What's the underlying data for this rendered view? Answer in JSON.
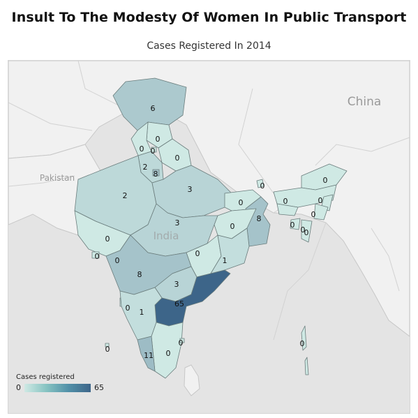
{
  "title": "Insult To The Modesty Of Women In Public Transport",
  "subtitle": "Cases Registered In 2014",
  "map": {
    "countries": [
      "China",
      "Pakistan",
      "India"
    ],
    "values": [
      {
        "id": "jk",
        "value": "6"
      },
      {
        "id": "hp",
        "value": "0"
      },
      {
        "id": "pb",
        "value": "0"
      },
      {
        "id": "ch",
        "value": "0"
      },
      {
        "id": "uk",
        "value": "0"
      },
      {
        "id": "hr",
        "value": "2"
      },
      {
        "id": "dl",
        "value": "8"
      },
      {
        "id": "rj",
        "value": "2"
      },
      {
        "id": "up",
        "value": "3"
      },
      {
        "id": "sk",
        "value": "0"
      },
      {
        "id": "ar",
        "value": "0"
      },
      {
        "id": "br",
        "value": "0"
      },
      {
        "id": "as",
        "value": "0"
      },
      {
        "id": "nl",
        "value": "0"
      },
      {
        "id": "ml",
        "value": "0"
      },
      {
        "id": "mn",
        "value": "0"
      },
      {
        "id": "tr",
        "value": "0"
      },
      {
        "id": "mz",
        "value": "0"
      },
      {
        "id": "wb",
        "value": "8"
      },
      {
        "id": "jh",
        "value": "0"
      },
      {
        "id": "mp",
        "value": "3"
      },
      {
        "id": "gj",
        "value": "0"
      },
      {
        "id": "dd",
        "value": "0"
      },
      {
        "id": "dnh",
        "value": "0"
      },
      {
        "id": "cg",
        "value": "0"
      },
      {
        "id": "od",
        "value": "1"
      },
      {
        "id": "mh",
        "value": "8"
      },
      {
        "id": "tg",
        "value": "3"
      },
      {
        "id": "ap",
        "value": "65"
      },
      {
        "id": "ga",
        "value": "0"
      },
      {
        "id": "ka",
        "value": "1"
      },
      {
        "id": "ld",
        "value": "0"
      },
      {
        "id": "tn",
        "value": "0"
      },
      {
        "id": "py",
        "value": "0"
      },
      {
        "id": "kl",
        "value": "11"
      },
      {
        "id": "an",
        "value": "0"
      }
    ]
  },
  "legend": {
    "title": "Cases registered",
    "min_label": "0",
    "max_label": "65",
    "color_low": "#cfe9e4",
    "color_high": "#3d6589"
  }
}
